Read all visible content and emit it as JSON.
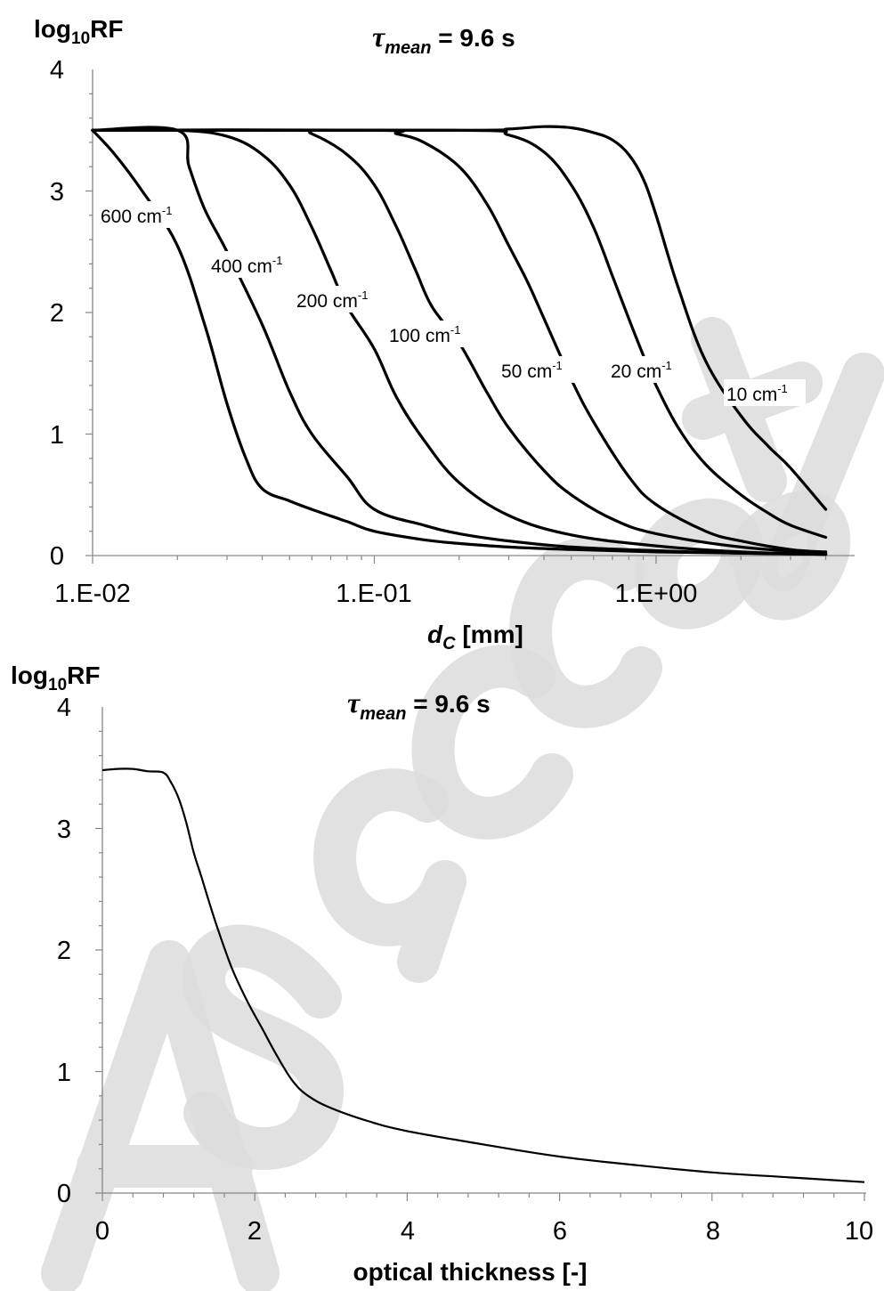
{
  "chart_data": [
    {
      "type": "line",
      "title_parts": {
        "tau": "τ",
        "sub": "mean",
        "rest": " = 9.6 s"
      },
      "ylabel_parts": {
        "main": "log",
        "sub": "10",
        "tail": "RF"
      },
      "xlabel_parts": {
        "d": "d",
        "sub": "C",
        "rest": " [mm]"
      },
      "x_scale": "log",
      "xlim": [
        0.01,
        4
      ],
      "ylim": [
        0,
        4
      ],
      "xticks": [
        "1.E-02",
        "1.E-01",
        "1.E+00"
      ],
      "yticks": [
        "0",
        "1",
        "2",
        "3",
        "4"
      ],
      "grid": false,
      "series": [
        {
          "name": "600 cm-1",
          "label_main": "600 cm",
          "label_sup": "-1",
          "x": [
            0.01,
            0.012,
            0.015,
            0.02,
            0.025,
            0.03,
            0.035,
            0.04,
            0.05,
            0.06,
            0.08,
            0.1,
            0.15,
            0.2,
            0.3,
            0.5,
            1,
            2,
            4
          ],
          "y": [
            3.5,
            3.3,
            3.0,
            2.55,
            1.9,
            1.25,
            0.8,
            0.55,
            0.45,
            0.38,
            0.28,
            0.2,
            0.13,
            0.1,
            0.07,
            0.05,
            0.03,
            0.02,
            0.01
          ]
        },
        {
          "name": "400 cm-1",
          "label_main": "400 cm",
          "label_sup": "-1",
          "x": [
            0.01,
            0.02,
            0.022,
            0.025,
            0.03,
            0.04,
            0.05,
            0.06,
            0.08,
            0.1,
            0.15,
            0.2,
            0.3,
            0.5,
            1,
            2,
            4
          ],
          "y": [
            3.5,
            3.5,
            3.2,
            2.85,
            2.5,
            1.9,
            1.35,
            1.0,
            0.65,
            0.38,
            0.25,
            0.18,
            0.12,
            0.07,
            0.04,
            0.02,
            0.01
          ]
        },
        {
          "name": "200 cm-1",
          "label_main": "200 cm",
          "label_sup": "-1",
          "x": [
            0.01,
            0.02,
            0.03,
            0.04,
            0.05,
            0.06,
            0.07,
            0.08,
            0.1,
            0.12,
            0.15,
            0.2,
            0.3,
            0.5,
            1,
            2,
            4
          ],
          "y": [
            3.5,
            3.5,
            3.45,
            3.3,
            3.05,
            2.7,
            2.35,
            2.05,
            1.7,
            1.3,
            0.95,
            0.6,
            0.33,
            0.17,
            0.08,
            0.03,
            0.01
          ]
        },
        {
          "name": "100 cm-1",
          "label_main": "100 cm",
          "label_sup": "-1",
          "x": [
            0.01,
            0.05,
            0.06,
            0.08,
            0.1,
            0.12,
            0.14,
            0.16,
            0.2,
            0.25,
            0.3,
            0.4,
            0.5,
            0.7,
            1,
            2,
            4
          ],
          "y": [
            3.5,
            3.5,
            3.47,
            3.3,
            3.05,
            2.7,
            2.35,
            2.05,
            1.75,
            1.35,
            1.05,
            0.7,
            0.5,
            0.3,
            0.18,
            0.07,
            0.02
          ]
        },
        {
          "name": "50 cm-1",
          "label_main": "50 cm",
          "label_sup": "-1",
          "x": [
            0.01,
            0.1,
            0.12,
            0.15,
            0.2,
            0.25,
            0.3,
            0.35,
            0.4,
            0.5,
            0.6,
            0.8,
            1,
            1.5,
            2,
            3,
            4
          ],
          "y": [
            3.5,
            3.5,
            3.47,
            3.4,
            3.2,
            2.9,
            2.55,
            2.25,
            1.95,
            1.45,
            1.1,
            0.65,
            0.42,
            0.2,
            0.12,
            0.05,
            0.03
          ]
        },
        {
          "name": "20 cm-1",
          "label_main": "20 cm",
          "label_sup": "-1",
          "x": [
            0.01,
            0.2,
            0.3,
            0.4,
            0.5,
            0.6,
            0.7,
            0.8,
            0.9,
            1,
            1.2,
            1.5,
            2,
            2.5,
            3,
            4
          ],
          "y": [
            3.5,
            3.5,
            3.46,
            3.32,
            3.05,
            2.7,
            2.3,
            1.95,
            1.65,
            1.4,
            1.05,
            0.75,
            0.5,
            0.35,
            0.25,
            0.15
          ]
        },
        {
          "name": "10 cm-1",
          "label_main": "10 cm",
          "label_sup": "-1",
          "x": [
            0.01,
            0.2,
            0.3,
            0.4,
            0.5,
            0.6,
            0.7,
            0.8,
            0.9,
            1,
            1.2,
            1.5,
            2,
            2.5,
            3,
            4
          ],
          "y": [
            3.5,
            3.5,
            3.51,
            3.53,
            3.52,
            3.48,
            3.42,
            3.3,
            3.1,
            2.8,
            2.2,
            1.6,
            1.15,
            0.9,
            0.72,
            0.38
          ]
        }
      ]
    },
    {
      "type": "line",
      "title_parts": {
        "tau": "τ",
        "sub": "mean",
        "rest": " = 9.6 s"
      },
      "ylabel_parts": {
        "main": "log",
        "sub": "10",
        "tail": "RF"
      },
      "xlabel": "optical thickness [-]",
      "xlim": [
        0,
        10
      ],
      "ylim": [
        0,
        4
      ],
      "xticks": [
        "0",
        "2",
        "4",
        "6",
        "8",
        "10"
      ],
      "yticks": [
        "0",
        "1",
        "2",
        "3",
        "4"
      ],
      "grid": false,
      "series": [
        {
          "x": [
            0,
            0.2,
            0.4,
            0.6,
            0.8,
            0.9,
            1.0,
            1.1,
            1.2,
            1.3,
            1.5,
            1.7,
            1.9,
            2.1,
            2.3,
            2.5,
            2.7,
            3.0,
            3.5,
            4,
            5,
            6,
            7,
            8,
            9,
            10
          ],
          "y": [
            3.48,
            3.49,
            3.49,
            3.47,
            3.46,
            3.38,
            3.25,
            3.05,
            2.8,
            2.6,
            2.2,
            1.85,
            1.58,
            1.35,
            1.12,
            0.92,
            0.8,
            0.7,
            0.59,
            0.51,
            0.4,
            0.3,
            0.23,
            0.17,
            0.13,
            0.09
          ]
        }
      ]
    }
  ]
}
